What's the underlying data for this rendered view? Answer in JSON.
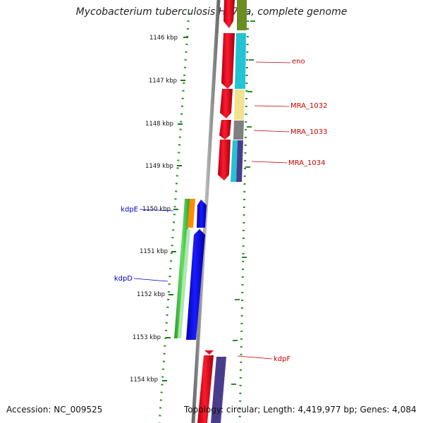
{
  "title": "Mycobacterium tuberculosis H37Ra, complete genome",
  "footer": {
    "accession": "Accession: NC_009525",
    "summary": "Topology: circular; Length: 4,419,977 bp; Genes: 4,084"
  },
  "ticks": [
    {
      "label": "1146 kbp"
    },
    {
      "label": "1147 kbp"
    },
    {
      "label": "1148 kbp"
    },
    {
      "label": "1149 kbp"
    },
    {
      "label": "1150 kbp"
    },
    {
      "label": "1151 kbp"
    },
    {
      "label": "1152 kbp"
    },
    {
      "label": "1153 kbp"
    },
    {
      "label": "1154 kbp"
    }
  ],
  "gene_labels": [
    {
      "text": "eno",
      "color": "#cc0000"
    },
    {
      "text": "MRA_1032",
      "color": "#cc0000"
    },
    {
      "text": "MRA_1033",
      "color": "#cc0000"
    },
    {
      "text": "MRA_1034",
      "color": "#cc0000"
    },
    {
      "text": "kdpE",
      "color": "#0000cc"
    },
    {
      "text": "kdpD",
      "color": "#0000cc"
    },
    {
      "text": "kdpF",
      "color": "#cc0000"
    }
  ],
  "colors": {
    "backbone": "#8c8c8c",
    "dots": "#2e8b2e",
    "forward_cds": "#e8001c",
    "reverse_cds": "#0000ee",
    "kdpD_cog": "#44bb44",
    "kdpE_cog": "#ff8c00",
    "cog_cyan": "#22c4d4",
    "cog_yellow": "#f0e290",
    "cog_gray": "#808080",
    "cog_purple": "#4a3c8c",
    "cog_olive": "#6b8e23"
  }
}
